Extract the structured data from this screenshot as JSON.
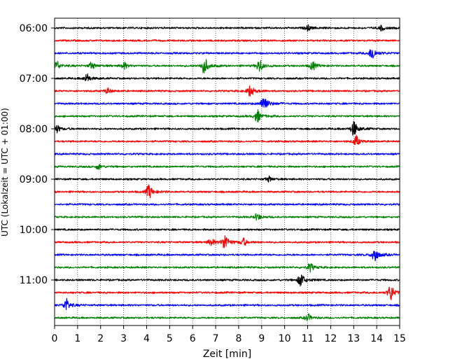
{
  "chart_data": {
    "type": "line",
    "title": "",
    "xlabel": "Zeit  [min]",
    "ylabel": "UTC (Lokalzeit = UTC + 01:00)",
    "xlim": [
      0,
      15
    ],
    "x_ticks": [
      "0",
      "1",
      "2",
      "3",
      "4",
      "5",
      "6",
      "7",
      "8",
      "9",
      "10",
      "11",
      "12",
      "13",
      "14",
      "15"
    ],
    "y_hour_labels": [
      "06:00",
      "07:00",
      "08:00",
      "09:00",
      "10:00",
      "11:00"
    ],
    "grid": "vertical-dotted",
    "legend": "none",
    "line_colors": [
      "#000000",
      "#ff0000",
      "#0000ff",
      "#008000"
    ],
    "traces": [
      {
        "start": "06:00",
        "color": "#000000",
        "events": [
          {
            "t": 11.0,
            "amp": 3
          },
          {
            "t": 14.2,
            "amp": 3
          }
        ]
      },
      {
        "start": "06:15",
        "color": "#ff0000",
        "events": []
      },
      {
        "start": "06:30",
        "color": "#0000ff",
        "events": [
          {
            "t": 13.8,
            "amp": 8
          }
        ]
      },
      {
        "start": "06:45",
        "color": "#008000",
        "events": [
          {
            "t": 0.1,
            "amp": 5
          },
          {
            "t": 1.6,
            "amp": 4
          },
          {
            "t": 3.0,
            "amp": 4
          },
          {
            "t": 6.5,
            "amp": 10
          },
          {
            "t": 8.9,
            "amp": 7
          },
          {
            "t": 11.2,
            "amp": 5
          }
        ]
      },
      {
        "start": "07:00",
        "color": "#000000",
        "events": [
          {
            "t": 1.4,
            "amp": 5
          }
        ]
      },
      {
        "start": "07:15",
        "color": "#ff0000",
        "events": [
          {
            "t": 2.3,
            "amp": 3
          },
          {
            "t": 8.5,
            "amp": 7
          }
        ]
      },
      {
        "start": "07:30",
        "color": "#0000ff",
        "events": [
          {
            "t": 9.1,
            "amp": 11
          }
        ]
      },
      {
        "start": "07:45",
        "color": "#008000",
        "events": [
          {
            "t": 8.8,
            "amp": 7
          }
        ]
      },
      {
        "start": "08:00",
        "color": "#000000",
        "events": [
          {
            "t": 0.1,
            "amp": 4
          },
          {
            "t": 13.0,
            "amp": 9
          }
        ]
      },
      {
        "start": "08:15",
        "color": "#ff0000",
        "events": [
          {
            "t": 13.1,
            "amp": 6
          }
        ]
      },
      {
        "start": "08:30",
        "color": "#0000ff",
        "events": []
      },
      {
        "start": "08:45",
        "color": "#008000",
        "events": [
          {
            "t": 1.9,
            "amp": 3
          }
        ]
      },
      {
        "start": "09:00",
        "color": "#000000",
        "events": [
          {
            "t": 9.3,
            "amp": 3
          }
        ]
      },
      {
        "start": "09:15",
        "color": "#ff0000",
        "events": [
          {
            "t": 4.1,
            "amp": 8
          }
        ]
      },
      {
        "start": "09:30",
        "color": "#0000ff",
        "events": []
      },
      {
        "start": "09:45",
        "color": "#008000",
        "events": [
          {
            "t": 8.8,
            "amp": 4
          }
        ]
      },
      {
        "start": "10:00",
        "color": "#000000",
        "events": []
      },
      {
        "start": "10:15",
        "color": "#ff0000",
        "events": [
          {
            "t": 6.8,
            "amp": 4
          },
          {
            "t": 7.4,
            "amp": 9
          },
          {
            "t": 8.2,
            "amp": 4
          }
        ]
      },
      {
        "start": "10:30",
        "color": "#0000ff",
        "events": [
          {
            "t": 13.9,
            "amp": 9
          }
        ]
      },
      {
        "start": "10:45",
        "color": "#008000",
        "events": [
          {
            "t": 11.1,
            "amp": 5
          }
        ]
      },
      {
        "start": "11:00",
        "color": "#000000",
        "events": [
          {
            "t": 10.7,
            "amp": 8
          }
        ]
      },
      {
        "start": "11:15",
        "color": "#ff0000",
        "events": [
          {
            "t": 14.6,
            "amp": 9
          }
        ]
      },
      {
        "start": "11:30",
        "color": "#0000ff",
        "events": [
          {
            "t": 0.5,
            "amp": 7
          }
        ]
      },
      {
        "start": "11:45",
        "color": "#008000",
        "events": [
          {
            "t": 11.0,
            "amp": 4
          }
        ]
      }
    ]
  }
}
